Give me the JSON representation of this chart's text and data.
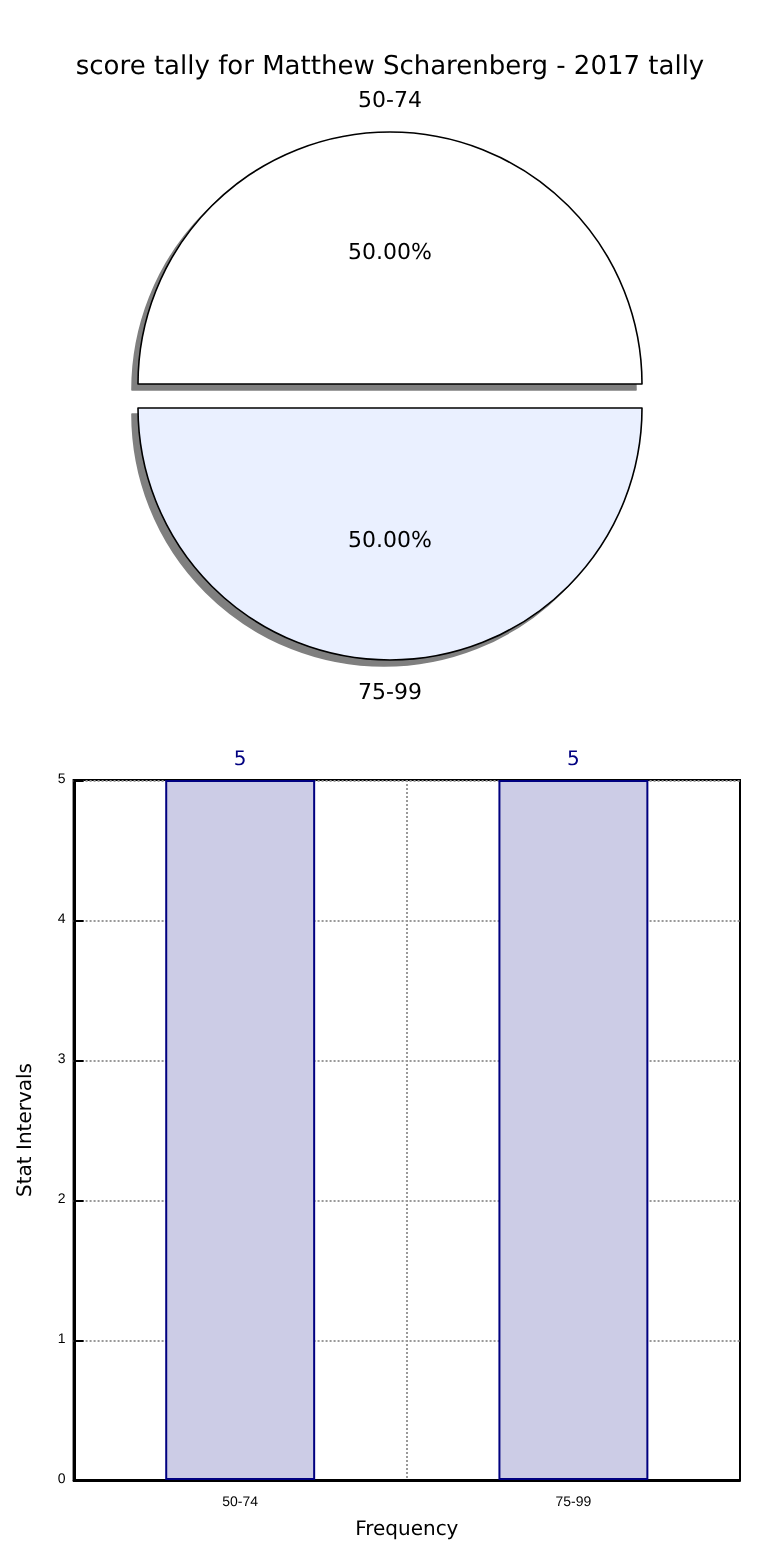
{
  "chart_data": [
    {
      "type": "pie",
      "title": "score tally for Matthew Scharenberg - 2017 tally",
      "categories": [
        "50-74",
        "75-99"
      ],
      "values": [
        50,
        50
      ],
      "colors": [
        "#ffffff",
        "#eaf0ff"
      ],
      "value_labels": [
        "50.00%",
        "50.00%"
      ]
    },
    {
      "type": "bar",
      "categories": [
        "50-74",
        "75-99"
      ],
      "values": [
        5,
        5
      ],
      "color": "#cccce6",
      "xlabel": "Frequency",
      "ylabel": "Stat Intervals",
      "ylim": [
        0,
        5
      ],
      "yticks": [
        0,
        1,
        2,
        3,
        4,
        5
      ],
      "grid": true,
      "data_labels": true
    }
  ]
}
